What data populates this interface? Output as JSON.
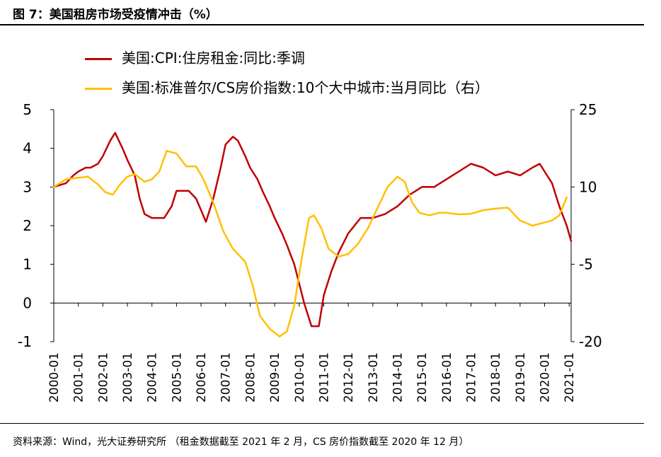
{
  "figure": {
    "title": "图 7：美国租房市场受疫情冲击（%）",
    "source": "资料来源：Wind，光大证券研究所 （租金数据截至 2021 年 2 月，CS 房价指数截至 2020 年 12 月）"
  },
  "chart_data": {
    "type": "line",
    "title": "图 7：美国租房市场受疫情冲击（%）",
    "x_tick_labels": [
      "2000-01",
      "2001-01",
      "2002-01",
      "2003-01",
      "2004-01",
      "2005-01",
      "2006-01",
      "2007-01",
      "2008-01",
      "2009-01",
      "2010-01",
      "2011-01",
      "2012-01",
      "2013-01",
      "2014-01",
      "2015-01",
      "2016-01",
      "2017-01",
      "2018-01",
      "2019-01",
      "2020-01",
      "2021-01"
    ],
    "y_left": {
      "min": -1,
      "max": 5,
      "ticks": [
        "-1",
        "0",
        "1",
        "2",
        "3",
        "4",
        "5"
      ]
    },
    "y_right": {
      "min": -20,
      "max": 25,
      "ticks": [
        "-20",
        "-5",
        "10",
        "25"
      ]
    },
    "series": [
      {
        "name": "美国:CPI:住房租金:同比:季调",
        "axis": "left",
        "color": "#C00000",
        "points": [
          [
            2000.0,
            3.0
          ],
          [
            2000.5,
            3.1
          ],
          [
            2000.8,
            3.3
          ],
          [
            2001.0,
            3.4
          ],
          [
            2001.3,
            3.5
          ],
          [
            2001.5,
            3.5
          ],
          [
            2001.8,
            3.6
          ],
          [
            2002.0,
            3.8
          ],
          [
            2002.3,
            4.2
          ],
          [
            2002.5,
            4.4
          ],
          [
            2002.8,
            4.0
          ],
          [
            2003.0,
            3.7
          ],
          [
            2003.3,
            3.3
          ],
          [
            2003.5,
            2.7
          ],
          [
            2003.7,
            2.3
          ],
          [
            2004.0,
            2.2
          ],
          [
            2004.5,
            2.2
          ],
          [
            2004.8,
            2.5
          ],
          [
            2005.0,
            2.9
          ],
          [
            2005.5,
            2.9
          ],
          [
            2005.8,
            2.7
          ],
          [
            2006.0,
            2.4
          ],
          [
            2006.2,
            2.1
          ],
          [
            2006.5,
            2.7
          ],
          [
            2006.8,
            3.5
          ],
          [
            2007.0,
            4.1
          ],
          [
            2007.3,
            4.3
          ],
          [
            2007.5,
            4.2
          ],
          [
            2007.8,
            3.8
          ],
          [
            2008.0,
            3.5
          ],
          [
            2008.3,
            3.2
          ],
          [
            2008.5,
            2.9
          ],
          [
            2008.8,
            2.5
          ],
          [
            2009.0,
            2.2
          ],
          [
            2009.3,
            1.8
          ],
          [
            2009.5,
            1.5
          ],
          [
            2009.8,
            1.0
          ],
          [
            2010.0,
            0.5
          ],
          [
            2010.2,
            0.0
          ],
          [
            2010.5,
            -0.6
          ],
          [
            2010.8,
            -0.6
          ],
          [
            2011.0,
            0.2
          ],
          [
            2011.3,
            0.8
          ],
          [
            2011.6,
            1.3
          ],
          [
            2012.0,
            1.8
          ],
          [
            2012.5,
            2.2
          ],
          [
            2013.0,
            2.2
          ],
          [
            2013.5,
            2.3
          ],
          [
            2014.0,
            2.5
          ],
          [
            2014.5,
            2.8
          ],
          [
            2015.0,
            3.0
          ],
          [
            2015.5,
            3.0
          ],
          [
            2016.0,
            3.2
          ],
          [
            2016.5,
            3.4
          ],
          [
            2017.0,
            3.6
          ],
          [
            2017.5,
            3.5
          ],
          [
            2018.0,
            3.3
          ],
          [
            2018.5,
            3.4
          ],
          [
            2019.0,
            3.3
          ],
          [
            2019.5,
            3.5
          ],
          [
            2019.8,
            3.6
          ],
          [
            2020.0,
            3.4
          ],
          [
            2020.3,
            3.1
          ],
          [
            2020.6,
            2.5
          ],
          [
            2020.9,
            2.0
          ],
          [
            2021.08,
            1.6
          ]
        ]
      },
      {
        "name": "美国:标准普尔/CS房价指数:10个大中城市:当月同比（右）",
        "axis": "right",
        "color": "#FFC000",
        "points": [
          [
            2000.0,
            10.0
          ],
          [
            2000.5,
            11.5
          ],
          [
            2001.0,
            11.8
          ],
          [
            2001.4,
            12.0
          ],
          [
            2001.8,
            10.5
          ],
          [
            2002.1,
            9.0
          ],
          [
            2002.4,
            8.5
          ],
          [
            2002.7,
            10.5
          ],
          [
            2003.0,
            12.0
          ],
          [
            2003.3,
            12.5
          ],
          [
            2003.7,
            11.0
          ],
          [
            2004.0,
            11.5
          ],
          [
            2004.3,
            13.0
          ],
          [
            2004.6,
            17.0
          ],
          [
            2005.0,
            16.5
          ],
          [
            2005.4,
            14.0
          ],
          [
            2005.8,
            14.0
          ],
          [
            2006.1,
            11.5
          ],
          [
            2006.5,
            7.0
          ],
          [
            2006.9,
            1.5
          ],
          [
            2007.3,
            -2.0
          ],
          [
            2007.8,
            -4.5
          ],
          [
            2008.1,
            -9.0
          ],
          [
            2008.4,
            -15.0
          ],
          [
            2008.8,
            -17.5
          ],
          [
            2009.2,
            -19.0
          ],
          [
            2009.5,
            -18.0
          ],
          [
            2009.8,
            -13.0
          ],
          [
            2010.1,
            -4.0
          ],
          [
            2010.4,
            4.0
          ],
          [
            2010.6,
            4.5
          ],
          [
            2010.9,
            2.0
          ],
          [
            2011.2,
            -2.0
          ],
          [
            2011.6,
            -3.5
          ],
          [
            2012.0,
            -3.0
          ],
          [
            2012.4,
            -1.0
          ],
          [
            2012.8,
            2.0
          ],
          [
            2013.2,
            6.0
          ],
          [
            2013.6,
            10.0
          ],
          [
            2014.0,
            12.0
          ],
          [
            2014.3,
            11.0
          ],
          [
            2014.6,
            7.0
          ],
          [
            2014.9,
            5.0
          ],
          [
            2015.3,
            4.5
          ],
          [
            2015.7,
            5.0
          ],
          [
            2016.0,
            5.0
          ],
          [
            2016.5,
            4.7
          ],
          [
            2017.0,
            4.8
          ],
          [
            2017.5,
            5.5
          ],
          [
            2018.0,
            5.8
          ],
          [
            2018.5,
            6.0
          ],
          [
            2019.0,
            3.5
          ],
          [
            2019.5,
            2.5
          ],
          [
            2019.9,
            3.0
          ],
          [
            2020.3,
            3.5
          ],
          [
            2020.6,
            4.5
          ],
          [
            2020.9,
            8.0
          ]
        ]
      }
    ]
  }
}
